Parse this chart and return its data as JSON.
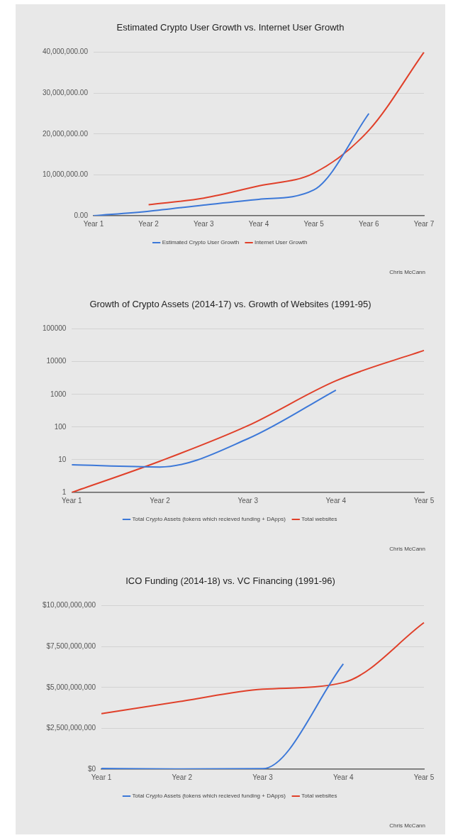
{
  "chart_data": [
    {
      "type": "line",
      "title": "Estimated Crypto User Growth vs. Internet User Growth",
      "categories": [
        "Year 1",
        "Year 2",
        "Year 3",
        "Year 4",
        "Year 5",
        "Year 6",
        "Year 7"
      ],
      "series": [
        {
          "name": "Estimated Crypto User Growth",
          "color": "#3c78d8",
          "values": [
            0,
            1100000,
            2600000,
            4000000,
            6300000,
            25000000,
            null
          ]
        },
        {
          "name": "Internet User Growth",
          "color": "#e0402a",
          "values": [
            null,
            2700000,
            4300000,
            7300000,
            10400000,
            20900000,
            40000000
          ]
        }
      ],
      "ylim": [
        0,
        40000000
      ],
      "yticks": [
        {
          "value": 0,
          "label": "0.00"
        },
        {
          "value": 10000000,
          "label": "10,000,000.00"
        },
        {
          "value": 20000000,
          "label": "20,000,000.00"
        },
        {
          "value": 30000000,
          "label": "30,000,000.00"
        },
        {
          "value": 40000000,
          "label": "40,000,000.00"
        }
      ],
      "grid": "y",
      "legend": "bottom",
      "marker": "none",
      "annotations": [
        "Chris McCann"
      ]
    },
    {
      "type": "line",
      "title": "Growth of Crypto Assets (2014-17) vs. Growth of Websites (1991-95)",
      "categories": [
        "Year 1",
        "Year 2",
        "Year 3",
        "Year 4",
        "Year 5"
      ],
      "series": [
        {
          "name": "Total Crypto Assets (tokens which recieved funding + DApps)",
          "color": "#3c78d8",
          "values": [
            7,
            6,
            44,
            1350,
            null
          ]
        },
        {
          "name": "Total websites",
          "color": "#e0402a",
          "values": [
            1,
            9,
            110,
            2600,
            22000
          ]
        }
      ],
      "log": "y",
      "ylim": [
        1,
        100000
      ],
      "yticks": [
        1,
        10,
        100,
        1000,
        10000,
        100000
      ],
      "grid": "y",
      "legend": "bottom",
      "marker": "none",
      "annotations": [
        "Chris McCann"
      ]
    },
    {
      "type": "line",
      "title": "ICO Funding (2014-18) vs. VC Financing (1991-96)",
      "categories": [
        "Year 1",
        "Year 2",
        "Year 3",
        "Year 4",
        "Year 5"
      ],
      "series": [
        {
          "name": "Total Crypto Assets (tokens which recieved funding + DApps)",
          "color": "#3c78d8",
          "values": [
            40000000,
            10000000,
            30000000,
            6440000000,
            null
          ]
        },
        {
          "name": "Total websites",
          "color": "#e0402a",
          "values": [
            3400000000,
            4160000000,
            4890000000,
            5300000000,
            8960000000
          ]
        }
      ],
      "ylim": [
        0,
        10000000000
      ],
      "yticks": [
        {
          "value": 0,
          "label": "$0"
        },
        {
          "value": 2500000000,
          "label": "$2,500,000,000"
        },
        {
          "value": 5000000000,
          "label": "$5,000,000,000"
        },
        {
          "value": 7500000000,
          "label": "$7,500,000,000"
        },
        {
          "value": 10000000000,
          "label": "$10,000,000,000"
        }
      ],
      "grid": "y",
      "legend": "bottom",
      "marker": "none",
      "annotations": [
        "Chris McCann"
      ]
    }
  ]
}
